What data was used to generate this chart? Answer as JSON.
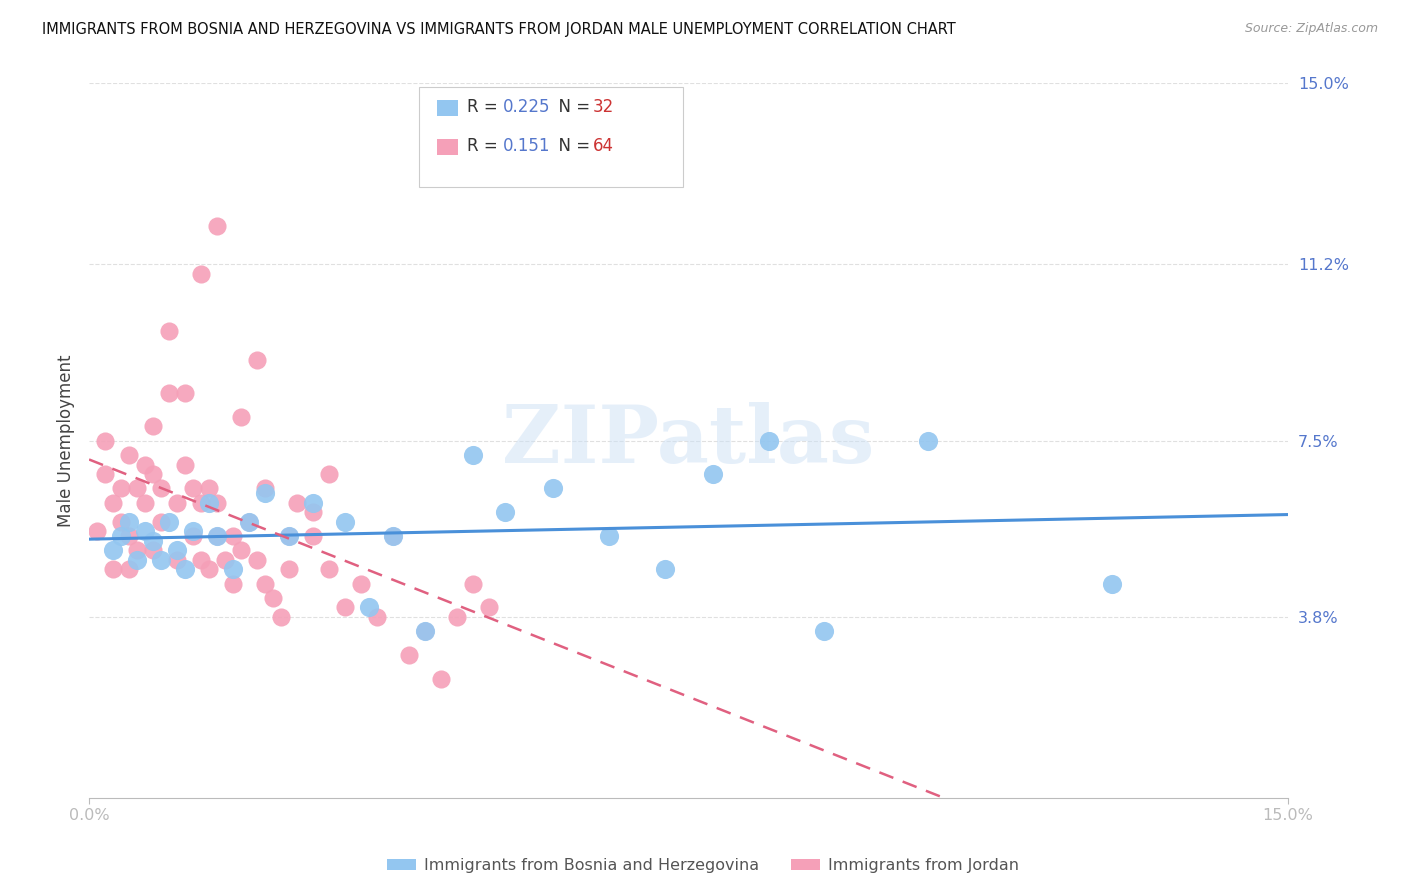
{
  "title": "IMMIGRANTS FROM BOSNIA AND HERZEGOVINA VS IMMIGRANTS FROM JORDAN MALE UNEMPLOYMENT CORRELATION CHART",
  "source": "Source: ZipAtlas.com",
  "ylabel": "Male Unemployment",
  "xlim": [
    0.0,
    0.15
  ],
  "ylim": [
    0.0,
    0.15
  ],
  "x_tick_labels": [
    "0.0%",
    "15.0%"
  ],
  "y_tick_labels_right": [
    "15.0%",
    "11.2%",
    "7.5%",
    "3.8%"
  ],
  "y_tick_values_right": [
    0.15,
    0.112,
    0.075,
    0.038
  ],
  "grid_color": "#e0e0e0",
  "background_color": "#ffffff",
  "bosnia_color": "#93c6f0",
  "jordan_color": "#f5a0b8",
  "bosnia_line_color": "#4a90d9",
  "jordan_line_color": "#e06080",
  "legend_R_bosnia": "0.225",
  "legend_N_bosnia": "32",
  "legend_R_jordan": "0.151",
  "legend_N_jordan": "64",
  "bosnia_label": "Immigrants from Bosnia and Herzegovina",
  "jordan_label": "Immigrants from Jordan",
  "watermark": "ZIPatlas",
  "bosnia_x": [
    0.003,
    0.004,
    0.005,
    0.006,
    0.007,
    0.008,
    0.009,
    0.01,
    0.011,
    0.012,
    0.013,
    0.015,
    0.016,
    0.018,
    0.02,
    0.022,
    0.025,
    0.028,
    0.032,
    0.035,
    0.038,
    0.042,
    0.048,
    0.052,
    0.058,
    0.065,
    0.072,
    0.078,
    0.085,
    0.092,
    0.105,
    0.128
  ],
  "bosnia_y": [
    0.052,
    0.055,
    0.058,
    0.05,
    0.056,
    0.054,
    0.05,
    0.058,
    0.052,
    0.048,
    0.056,
    0.062,
    0.055,
    0.048,
    0.058,
    0.064,
    0.055,
    0.062,
    0.058,
    0.04,
    0.055,
    0.035,
    0.072,
    0.06,
    0.065,
    0.055,
    0.048,
    0.068,
    0.075,
    0.035,
    0.075,
    0.045
  ],
  "jordan_x": [
    0.001,
    0.002,
    0.002,
    0.003,
    0.003,
    0.004,
    0.004,
    0.005,
    0.005,
    0.005,
    0.006,
    0.006,
    0.007,
    0.007,
    0.008,
    0.008,
    0.008,
    0.009,
    0.009,
    0.01,
    0.01,
    0.011,
    0.011,
    0.012,
    0.012,
    0.013,
    0.013,
    0.014,
    0.014,
    0.015,
    0.015,
    0.016,
    0.016,
    0.017,
    0.018,
    0.018,
    0.019,
    0.02,
    0.021,
    0.022,
    0.023,
    0.024,
    0.025,
    0.026,
    0.028,
    0.03,
    0.032,
    0.034,
    0.036,
    0.038,
    0.04,
    0.042,
    0.044,
    0.046,
    0.048,
    0.05,
    0.022,
    0.025,
    0.028,
    0.03,
    0.014,
    0.016,
    0.019,
    0.021
  ],
  "jordan_y": [
    0.056,
    0.068,
    0.075,
    0.062,
    0.048,
    0.065,
    0.058,
    0.072,
    0.055,
    0.048,
    0.065,
    0.052,
    0.07,
    0.062,
    0.078,
    0.068,
    0.052,
    0.065,
    0.058,
    0.085,
    0.098,
    0.062,
    0.05,
    0.085,
    0.07,
    0.065,
    0.055,
    0.062,
    0.05,
    0.065,
    0.048,
    0.062,
    0.055,
    0.05,
    0.055,
    0.045,
    0.052,
    0.058,
    0.05,
    0.045,
    0.042,
    0.038,
    0.048,
    0.062,
    0.055,
    0.048,
    0.04,
    0.045,
    0.038,
    0.055,
    0.03,
    0.035,
    0.025,
    0.038,
    0.045,
    0.04,
    0.065,
    0.055,
    0.06,
    0.068,
    0.11,
    0.12,
    0.08,
    0.092
  ],
  "trendline_x_start": 0.0,
  "trendline_x_end": 0.15
}
